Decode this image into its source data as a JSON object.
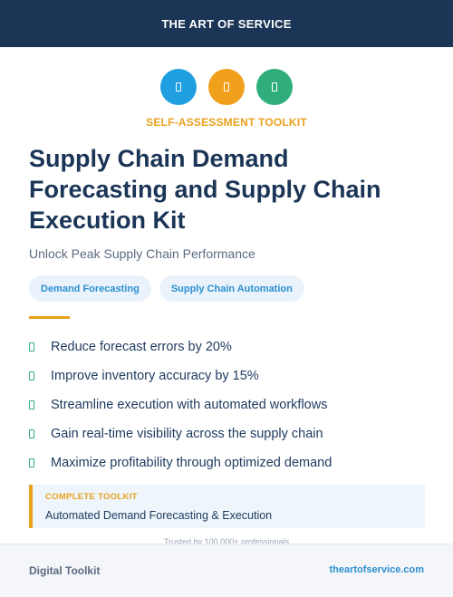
{
  "header": {
    "brand": "THE ART OF SERVICE"
  },
  "icons": [
    {
      "name": "document-icon",
      "color": "#1f9fe0"
    },
    {
      "name": "document-icon",
      "color": "#f0a01c"
    },
    {
      "name": "document-icon",
      "color": "#2fae7c"
    }
  ],
  "eyebrow": "SELF-ASSESSMENT TOOLKIT",
  "title": "Supply Chain Demand Forecasting and Supply Chain Execution Kit",
  "subtitle": "Unlock Peak Supply Chain Performance",
  "tags": [
    "Demand Forecasting",
    "Supply Chain Automation"
  ],
  "benefits": [
    "Reduce forecast errors by 20%",
    "Improve inventory accuracy by 15%",
    "Streamline execution with automated workflows",
    "Gain real-time visibility across the supply chain",
    "Maximize profitability through optimized demand"
  ],
  "toolkit": {
    "label": "COMPLETE TOOLKIT",
    "value": "Automated Demand Forecasting & Execution"
  },
  "trusted": "Trusted by 100,000+ professionals",
  "footer": {
    "left": "Digital Toolkit",
    "right": "theartofservice.com"
  },
  "colors": {
    "navy": "#1b3557",
    "accent": "#e8a21d",
    "blue": "#2b8fd0",
    "green": "#2fae7c"
  }
}
